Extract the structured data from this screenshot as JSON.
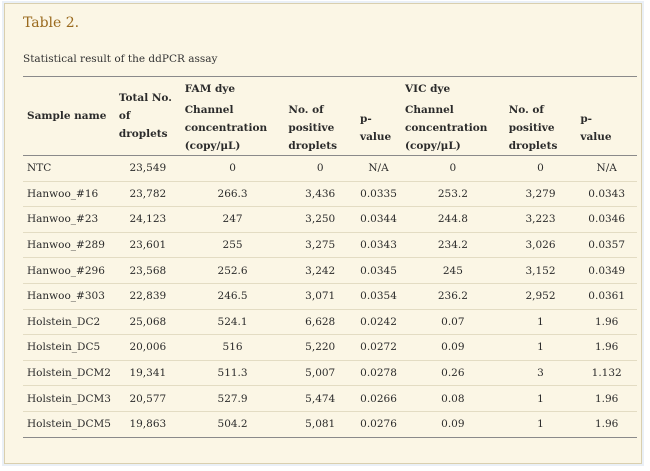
{
  "table_title": "Table 2.",
  "caption": "Statistical result of the ddPCR assay",
  "headers": {
    "sample_name": "Sample name",
    "total_droplets": [
      "Total No.",
      "of",
      "droplets"
    ],
    "fam_dye": "FAM dye",
    "vic_dye": "VIC dye",
    "channel_conc": [
      "Channel",
      "concentration",
      "(copy/μL)"
    ],
    "positive_droplets": [
      "No. of",
      "positive",
      "droplets"
    ],
    "p_value": [
      "p-",
      "value"
    ]
  },
  "rows": [
    {
      "sample": "NTC",
      "total": "23,549",
      "fam_conc": "0",
      "fam_pos": "0",
      "fam_p": "N/A",
      "vic_conc": "0",
      "vic_pos": "0",
      "vic_p": "N/A"
    },
    {
      "sample": "Hanwoo_#16",
      "total": "23,782",
      "fam_conc": "266.3",
      "fam_pos": "3,436",
      "fam_p": "0.0335",
      "vic_conc": "253.2",
      "vic_pos": "3,279",
      "vic_p": "0.0343"
    },
    {
      "sample": "Hanwoo_#23",
      "total": "24,123",
      "fam_conc": "247",
      "fam_pos": "3,250",
      "fam_p": "0.0344",
      "vic_conc": "244.8",
      "vic_pos": "3,223",
      "vic_p": "0.0346"
    },
    {
      "sample": "Hanwoo_#289",
      "total": "23,601",
      "fam_conc": "255",
      "fam_pos": "3,275",
      "fam_p": "0.0343",
      "vic_conc": "234.2",
      "vic_pos": "3,026",
      "vic_p": "0.0357"
    },
    {
      "sample": "Hanwoo_#296",
      "total": "23,568",
      "fam_conc": "252.6",
      "fam_pos": "3,242",
      "fam_p": "0.0345",
      "vic_conc": "245",
      "vic_pos": "3,152",
      "vic_p": "0.0349"
    },
    {
      "sample": "Hanwoo_#303",
      "total": "22,839",
      "fam_conc": "246.5",
      "fam_pos": "3,071",
      "fam_p": "0.0354",
      "vic_conc": "236.2",
      "vic_pos": "2,952",
      "vic_p": "0.0361"
    },
    {
      "sample": "Holstein_DC2",
      "total": "25,068",
      "fam_conc": "524.1",
      "fam_pos": "6,628",
      "fam_p": "0.0242",
      "vic_conc": "0.07",
      "vic_pos": "1",
      "vic_p": "1.96"
    },
    {
      "sample": "Holstein_DC5",
      "total": "20,006",
      "fam_conc": "516",
      "fam_pos": "5,220",
      "fam_p": "0.0272",
      "vic_conc": "0.09",
      "vic_pos": "1",
      "vic_p": "1.96"
    },
    {
      "sample": "Holstein_DCM2",
      "total": "19,341",
      "fam_conc": "511.3",
      "fam_pos": "5,007",
      "fam_p": "0.0278",
      "vic_conc": "0.26",
      "vic_pos": "3",
      "vic_p": "1.132"
    },
    {
      "sample": "Holstein_DCM3",
      "total": "20,577",
      "fam_conc": "527.9",
      "fam_pos": "5,474",
      "fam_p": "0.0266",
      "vic_conc": "0.08",
      "vic_pos": "1",
      "vic_p": "1.96"
    },
    {
      "sample": "Holstein_DCM5",
      "total": "19,863",
      "fam_conc": "504.2",
      "fam_pos": "5,081",
      "fam_p": "0.0276",
      "vic_conc": "0.09",
      "vic_pos": "1",
      "vic_p": "1.96"
    }
  ],
  "colors": {
    "panel_background": "#fbf6e5",
    "title": "#9a6a1e",
    "rule": "#8a8a8a"
  }
}
